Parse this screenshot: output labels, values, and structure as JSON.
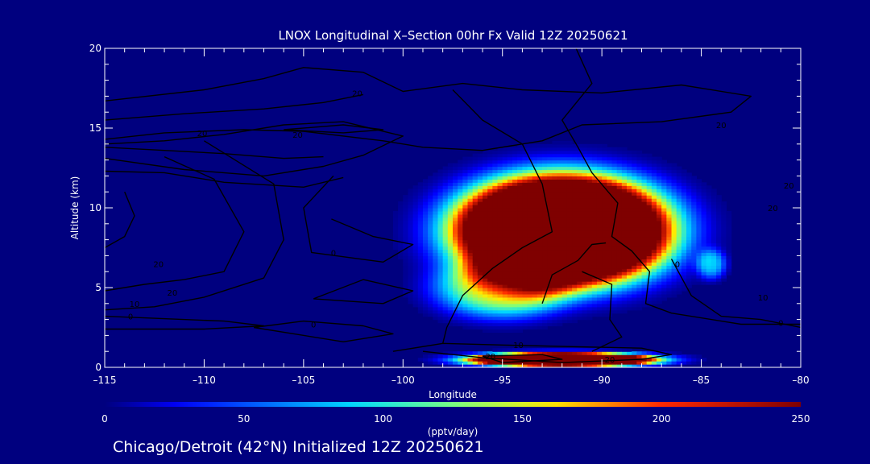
{
  "title": "LNOX Longitudinal X–Section 00hr  Fx Valid 12Z 20250621",
  "footer": "Chicago/Detroit (42°N) Initialized 12Z 20250621",
  "colors": {
    "background": "#00007f",
    "text": "#ffffff",
    "contour": "#000000"
  },
  "chart_data": {
    "type": "heatmap",
    "xlabel": "Longitude",
    "ylabel": "Altitude (km)",
    "xlim": [
      -115,
      -80
    ],
    "ylim": [
      0,
      20
    ],
    "xticks": [
      -115,
      -110,
      -105,
      -100,
      -95,
      -90,
      -85,
      -80
    ],
    "xtick_labels": [
      "–115",
      "–110",
      "–105",
      "–100",
      "–95",
      "–90",
      "–85",
      "–80"
    ],
    "yticks": [
      0,
      5,
      10,
      15,
      20
    ],
    "ytick_labels": [
      "0",
      "5",
      "10",
      "15",
      "20"
    ],
    "colorbar": {
      "label": "(pptv/day)",
      "range": [
        0,
        250
      ],
      "ticks": [
        0,
        50,
        100,
        150,
        200,
        250
      ],
      "tick_labels": [
        "0",
        "50",
        "100",
        "150",
        "200",
        "250"
      ],
      "colormap": "jet"
    },
    "blobs": [
      {
        "name": "upper-core",
        "lon": -92,
        "alt": 8.6,
        "lon_radius": 5.6,
        "alt_radius": 3.6,
        "peak": 600
      },
      {
        "name": "lower-anvil",
        "lon": -95,
        "alt": 5.0,
        "lon_radius": 3.6,
        "alt_radius": 2.0,
        "peak": 140
      },
      {
        "name": "low-layer",
        "lon": -92,
        "alt": 0.5,
        "lon_radius": 4.8,
        "alt_radius": 0.45,
        "peak": 600
      },
      {
        "name": "east-spot",
        "lon": -84.5,
        "alt": 6.5,
        "lon_radius": 0.8,
        "alt_radius": 1.0,
        "peak": 80
      }
    ],
    "contour_labels": [
      {
        "text": "20",
        "lon": -105.3,
        "alt": 14.4
      },
      {
        "text": "20",
        "lon": -110.1,
        "alt": 14.5
      },
      {
        "text": "20",
        "lon": -102.3,
        "alt": 17.0
      },
      {
        "text": "20",
        "lon": -112.3,
        "alt": 6.3
      },
      {
        "text": "20",
        "lon": -111.6,
        "alt": 4.5
      },
      {
        "text": "10",
        "lon": -113.5,
        "alt": 3.8
      },
      {
        "text": "0",
        "lon": -113.7,
        "alt": 3.0
      },
      {
        "text": "0",
        "lon": -104.5,
        "alt": 2.5
      },
      {
        "text": "0",
        "lon": -103.5,
        "alt": 7.0
      },
      {
        "text": "10",
        "lon": -94.2,
        "alt": 1.2
      },
      {
        "text": "20",
        "lon": -95.6,
        "alt": 0.5
      },
      {
        "text": "20",
        "lon": -89.6,
        "alt": 0.3
      },
      {
        "text": "20",
        "lon": -84.0,
        "alt": 15.0
      },
      {
        "text": "20",
        "lon": -80.6,
        "alt": 11.2
      },
      {
        "text": "20",
        "lon": -81.4,
        "alt": 9.8
      },
      {
        "text": "10",
        "lon": -81.9,
        "alt": 4.2
      },
      {
        "text": "0",
        "lon": -81.0,
        "alt": 2.6
      },
      {
        "text": "0",
        "lon": -86.2,
        "alt": 6.3
      }
    ],
    "contours": [
      [
        [
          -115,
          16.7
        ],
        [
          -110,
          17.4
        ],
        [
          -107,
          18.1
        ],
        [
          -105,
          18.8
        ],
        [
          -102,
          18.5
        ],
        [
          -100,
          17.3
        ],
        [
          -97,
          17.8
        ],
        [
          -94,
          17.4
        ],
        [
          -90,
          17.2
        ],
        [
          -86,
          17.7
        ],
        [
          -82.5,
          17.0
        ],
        [
          -83.5,
          16.0
        ],
        [
          -87,
          15.4
        ],
        [
          -91,
          15.2
        ],
        [
          -93,
          14.2
        ],
        [
          -96,
          13.6
        ],
        [
          -99,
          13.8
        ],
        [
          -101,
          14.2
        ],
        [
          -105,
          14.8
        ],
        [
          -108,
          14.9
        ],
        [
          -112,
          14.7
        ],
        [
          -115,
          14.3
        ]
      ],
      [
        [
          -115,
          15.5
        ],
        [
          -111,
          15.9
        ],
        [
          -107,
          16.2
        ],
        [
          -104,
          16.6
        ],
        [
          -102,
          17.1
        ]
      ],
      [
        [
          -115,
          13.8
        ],
        [
          -112,
          13.6
        ],
        [
          -109,
          13.4
        ],
        [
          -106,
          13.1
        ],
        [
          -104,
          13.2
        ]
      ],
      [
        [
          -115,
          13.1
        ],
        [
          -111,
          12.4
        ],
        [
          -107,
          12.0
        ],
        [
          -104,
          12.6
        ],
        [
          -102,
          13.3
        ],
        [
          -100,
          14.5
        ],
        [
          -103,
          15.4
        ],
        [
          -106,
          15.2
        ],
        [
          -109,
          14.6
        ],
        [
          -112,
          14.2
        ],
        [
          -115,
          14.0
        ]
      ],
      [
        [
          -106,
          14.9
        ],
        [
          -103,
          14.7
        ],
        [
          -101,
          14.9
        ],
        [
          -103,
          15.2
        ],
        [
          -106,
          14.9
        ]
      ],
      [
        [
          -115,
          12.3
        ],
        [
          -112,
          12.2
        ],
        [
          -109,
          11.6
        ],
        [
          -105,
          11.3
        ],
        [
          -103,
          11.9
        ]
      ],
      [
        [
          -114,
          11.0
        ],
        [
          -113.5,
          9.5
        ],
        [
          -114,
          8.2
        ],
        [
          -115,
          7.5
        ]
      ],
      [
        [
          -112,
          13.2
        ],
        [
          -109.5,
          11.8
        ],
        [
          -108,
          8.5
        ],
        [
          -109,
          6.0
        ],
        [
          -111,
          5.5
        ],
        [
          -113,
          5.2
        ],
        [
          -115,
          4.8
        ]
      ],
      [
        [
          -110,
          14.2
        ],
        [
          -106.5,
          11.5
        ],
        [
          -106,
          8.0
        ],
        [
          -107,
          5.6
        ],
        [
          -110,
          4.4
        ],
        [
          -112.5,
          3.8
        ],
        [
          -115,
          3.6
        ]
      ],
      [
        [
          -115,
          3.2
        ],
        [
          -109,
          2.9
        ],
        [
          -107,
          2.6
        ],
        [
          -110,
          2.4
        ],
        [
          -115,
          2.4
        ]
      ],
      [
        [
          -103.5,
          12.0
        ],
        [
          -105,
          10.0
        ],
        [
          -104.6,
          7.2
        ],
        [
          -101,
          6.6
        ],
        [
          -99.5,
          7.7
        ],
        [
          -101.5,
          8.2
        ],
        [
          -103.6,
          9.3
        ]
      ],
      [
        [
          -104.5,
          4.3
        ],
        [
          -102,
          5.5
        ],
        [
          -99.5,
          4.8
        ],
        [
          -101,
          4.0
        ],
        [
          -104.5,
          4.3
        ]
      ],
      [
        [
          -107.5,
          2.5
        ],
        [
          -105,
          2.9
        ],
        [
          -102,
          2.6
        ],
        [
          -100.5,
          2.1
        ],
        [
          -103,
          1.6
        ],
        [
          -107.5,
          2.5
        ]
      ],
      [
        [
          -97.5,
          17.4
        ],
        [
          -96,
          15.5
        ],
        [
          -94,
          14.0
        ],
        [
          -93,
          11.5
        ],
        [
          -92.5,
          8.5
        ],
        [
          -94,
          7.5
        ],
        [
          -95.5,
          6.2
        ],
        [
          -97,
          4.5
        ],
        [
          -97.8,
          2.5
        ],
        [
          -98,
          1.5
        ]
      ],
      [
        [
          -91.3,
          20
        ],
        [
          -90.5,
          17.8
        ],
        [
          -92,
          15.5
        ],
        [
          -91.2,
          13.8
        ],
        [
          -90.5,
          12.2
        ],
        [
          -89.2,
          10.3
        ],
        [
          -89.5,
          8.2
        ],
        [
          -88.5,
          7.3
        ],
        [
          -87.6,
          6.0
        ],
        [
          -87.8,
          4.0
        ],
        [
          -86.5,
          3.4
        ],
        [
          -83,
          2.7
        ],
        [
          -80,
          2.7
        ]
      ],
      [
        [
          -91,
          6.0
        ],
        [
          -89.5,
          5.2
        ],
        [
          -89.6,
          3.0
        ],
        [
          -89,
          1.9
        ],
        [
          -90.5,
          1.0
        ]
      ],
      [
        [
          -93,
          4.0
        ],
        [
          -92.5,
          5.8
        ],
        [
          -91.2,
          6.7
        ],
        [
          -90.5,
          7.7
        ],
        [
          -89.8,
          7.8
        ]
      ],
      [
        [
          -100.5,
          1.0
        ],
        [
          -98,
          1.5
        ],
        [
          -95,
          1.4
        ],
        [
          -91.5,
          1.3
        ],
        [
          -88,
          1.2
        ],
        [
          -86.5,
          0.8
        ],
        [
          -88,
          0.5
        ],
        [
          -92,
          0.3
        ],
        [
          -96,
          0.6
        ],
        [
          -99,
          1.0
        ]
      ],
      [
        [
          -96,
          0.7
        ],
        [
          -93,
          0.8
        ],
        [
          -92,
          0.5
        ],
        [
          -95,
          0.3
        ],
        [
          -96,
          0.7
        ]
      ],
      [
        [
          -86.5,
          6.8
        ],
        [
          -85.5,
          4.5
        ],
        [
          -84,
          3.2
        ],
        [
          -82,
          3.0
        ],
        [
          -80,
          2.5
        ]
      ]
    ]
  }
}
